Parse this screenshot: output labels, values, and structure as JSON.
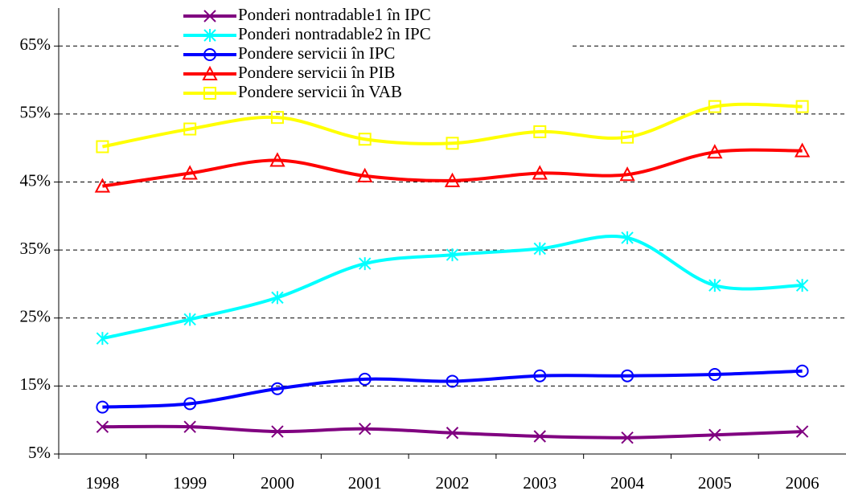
{
  "chart_data": {
    "type": "line",
    "categories": [
      "1998",
      "1999",
      "2000",
      "2001",
      "2002",
      "2003",
      "2004",
      "2005",
      "2006"
    ],
    "series": [
      {
        "name": "Ponderi nontradable1 în IPC",
        "color": "#800080",
        "marker": "x",
        "values": [
          9.0,
          9.0,
          8.3,
          8.7,
          8.1,
          7.6,
          7.4,
          7.8,
          8.3
        ]
      },
      {
        "name": "Ponderi nontradable2 în IPC",
        "color": "#00ffff",
        "marker": "star",
        "values": [
          22.0,
          24.8,
          28.0,
          33.0,
          34.3,
          35.2,
          36.8,
          29.8,
          29.8
        ]
      },
      {
        "name": "Pondere servicii în IPC",
        "color": "#0000ff",
        "marker": "circle",
        "values": [
          11.9,
          12.4,
          14.6,
          16.0,
          15.7,
          16.5,
          16.5,
          16.7,
          17.2
        ]
      },
      {
        "name": "Pondere servicii în PIB",
        "color": "#ff0000",
        "marker": "triangle",
        "values": [
          44.4,
          46.3,
          48.2,
          45.9,
          45.2,
          46.3,
          46.1,
          49.4,
          49.6
        ]
      },
      {
        "name": "Pondere servicii în VAB",
        "color": "#ffff00",
        "marker": "square",
        "values": [
          50.2,
          52.8,
          54.5,
          51.3,
          50.7,
          52.4,
          51.6,
          56.1,
          56.1
        ]
      }
    ],
    "ylim": [
      5,
      70
    ],
    "yticks": [
      {
        "value": 5,
        "label": "5%"
      },
      {
        "value": 15,
        "label": "15%"
      },
      {
        "value": 25,
        "label": "25%"
      },
      {
        "value": 35,
        "label": "35%"
      },
      {
        "value": 45,
        "label": "45%"
      },
      {
        "value": 55,
        "label": "55%"
      },
      {
        "value": 65,
        "label": "65%"
      }
    ],
    "grid": true,
    "legend": "top"
  }
}
